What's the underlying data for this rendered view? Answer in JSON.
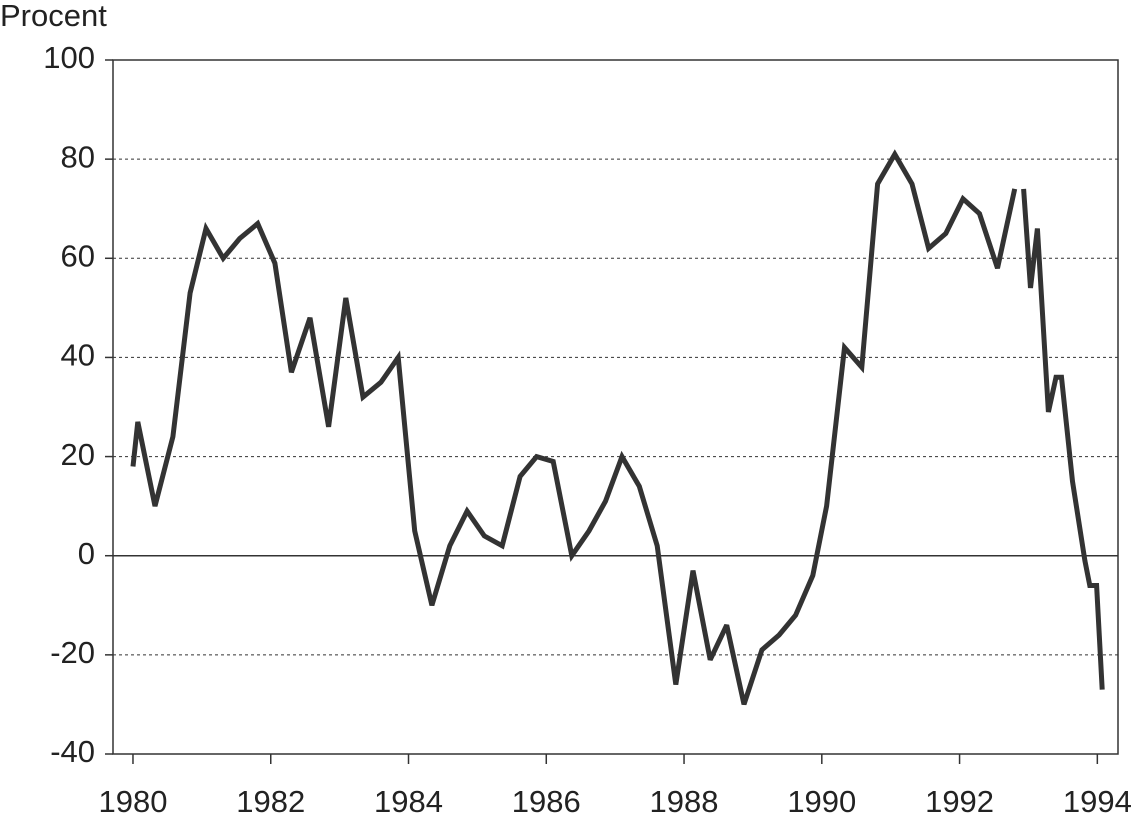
{
  "chart_data": {
    "type": "line",
    "y_label": "Procent",
    "x": [
      1980.0,
      1980.07,
      1980.32,
      1980.58,
      1980.83,
      1981.06,
      1981.31,
      1981.55,
      1981.81,
      1982.06,
      1982.3,
      1982.57,
      1982.84,
      1983.09,
      1983.34,
      1983.6,
      1983.85,
      1984.09,
      1984.34,
      1984.6,
      1984.85,
      1985.1,
      1985.36,
      1985.62,
      1985.86,
      1986.1,
      1986.37,
      1986.62,
      1986.86,
      1987.1,
      1987.35,
      1987.61,
      1987.88,
      1988.13,
      1988.38,
      1988.62,
      1988.87,
      1989.13,
      1989.38,
      1989.62,
      1989.87,
      1990.07,
      1990.33,
      1990.58,
      1990.81,
      1991.06,
      1991.31,
      1991.55,
      1991.8,
      1992.05,
      1992.29,
      1992.55,
      1992.8,
      1992.87,
      1992.93,
      1993.03,
      1993.13,
      1993.29,
      1993.4,
      1993.48,
      1993.64,
      1993.82,
      1993.89,
      1993.99,
      1994.07
    ],
    "values": [
      18,
      27,
      10,
      24,
      53,
      66,
      60,
      64,
      67,
      59,
      37,
      48,
      26,
      52,
      32,
      35,
      40,
      5,
      -10,
      2,
      9,
      4,
      2,
      16,
      20,
      19,
      0,
      5,
      11,
      20,
      14,
      2,
      -26,
      -3,
      -21,
      -14,
      -30,
      -19,
      -16,
      -12,
      -4,
      10,
      42,
      38,
      75,
      81,
      75,
      62,
      65,
      72,
      69,
      58,
      74,
      null,
      74,
      54,
      66,
      29,
      36,
      36,
      15,
      -1,
      -6,
      -6,
      -27
    ],
    "color": "#333333",
    "xlim": [
      1979.71,
      1994.3
    ],
    "xticks": [
      1980,
      1982,
      1984,
      1986,
      1988,
      1990,
      1992,
      1994
    ],
    "ylim": [
      -40,
      100
    ],
    "yticks": [
      -40,
      -20,
      0,
      20,
      40,
      60,
      80,
      100
    ],
    "grid": true
  }
}
